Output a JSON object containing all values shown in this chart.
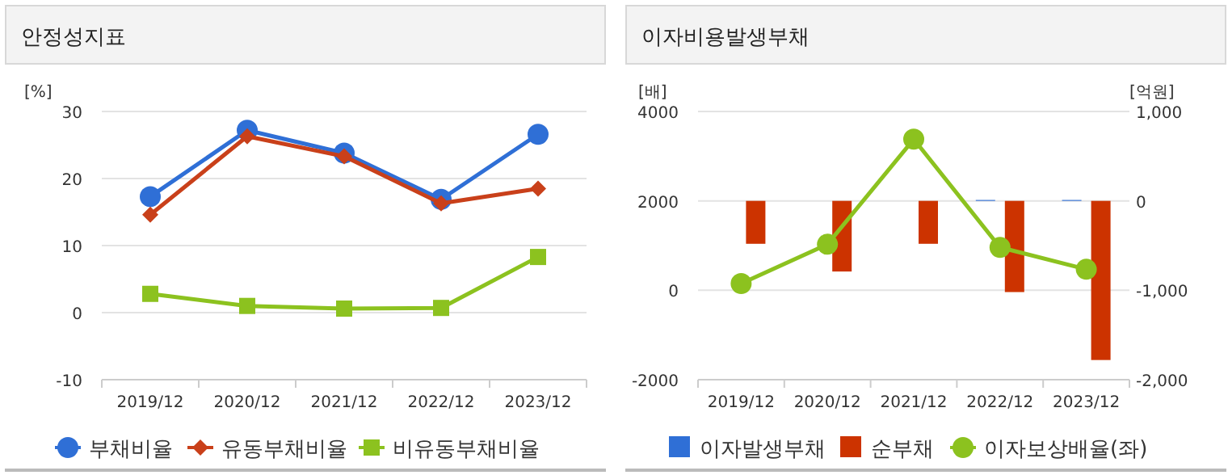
{
  "chart_data": [
    {
      "type": "line",
      "title": "안정성지표",
      "ylabel": "[%]",
      "categories": [
        "2019/12",
        "2020/12",
        "2021/12",
        "2022/12",
        "2023/12"
      ],
      "series": [
        {
          "name": "부채비율",
          "color": "#2f6fd6",
          "marker": "circle",
          "values": [
            17.3,
            27.2,
            23.8,
            16.9,
            26.6
          ]
        },
        {
          "name": "유동부채비율",
          "color": "#c9401a",
          "marker": "diamond",
          "values": [
            14.6,
            26.3,
            23.3,
            16.3,
            18.5
          ]
        },
        {
          "name": "비유동부채비율",
          "color": "#8cc21f",
          "marker": "square",
          "values": [
            2.8,
            1.0,
            0.6,
            0.7,
            8.3
          ]
        }
      ],
      "ylim": [
        -10,
        30
      ],
      "yticks": [
        -10,
        0,
        10,
        20,
        30
      ],
      "grid": "y",
      "legend": "bottom"
    },
    {
      "type": "bar",
      "title": "이자비용발생부채",
      "ylabel": "[배]",
      "y2label": "[억원]",
      "categories": [
        "2019/12",
        "2020/12",
        "2021/12",
        "2022/12",
        "2023/12"
      ],
      "series": [
        {
          "name": "이자발생부채",
          "color": "#2f6fd6",
          "axis": "y2",
          "values": [
            null,
            null,
            null,
            10,
            10
          ]
        },
        {
          "name": "순부채",
          "color": "#cc3300",
          "axis": "y2",
          "values": [
            -480,
            -790,
            -480,
            -1020,
            -1780
          ]
        },
        {
          "name": "이자보상배율(좌)",
          "type": "line",
          "marker": "circle",
          "color": "#8cc21f",
          "axis": "y",
          "values": [
            150,
            1030,
            3380,
            960,
            470
          ]
        }
      ],
      "ylim": [
        -2000,
        4000
      ],
      "yticks": [
        -2000,
        0,
        2000,
        4000
      ],
      "y2lim": [
        -2000,
        1000
      ],
      "y2ticks": [
        {
          "value": -2000,
          "label": "-2,000"
        },
        {
          "value": -1000,
          "label": "-1,000"
        },
        0,
        {
          "value": 1000,
          "label": "1,000"
        }
      ],
      "grid": "y",
      "legend": "bottom"
    }
  ]
}
